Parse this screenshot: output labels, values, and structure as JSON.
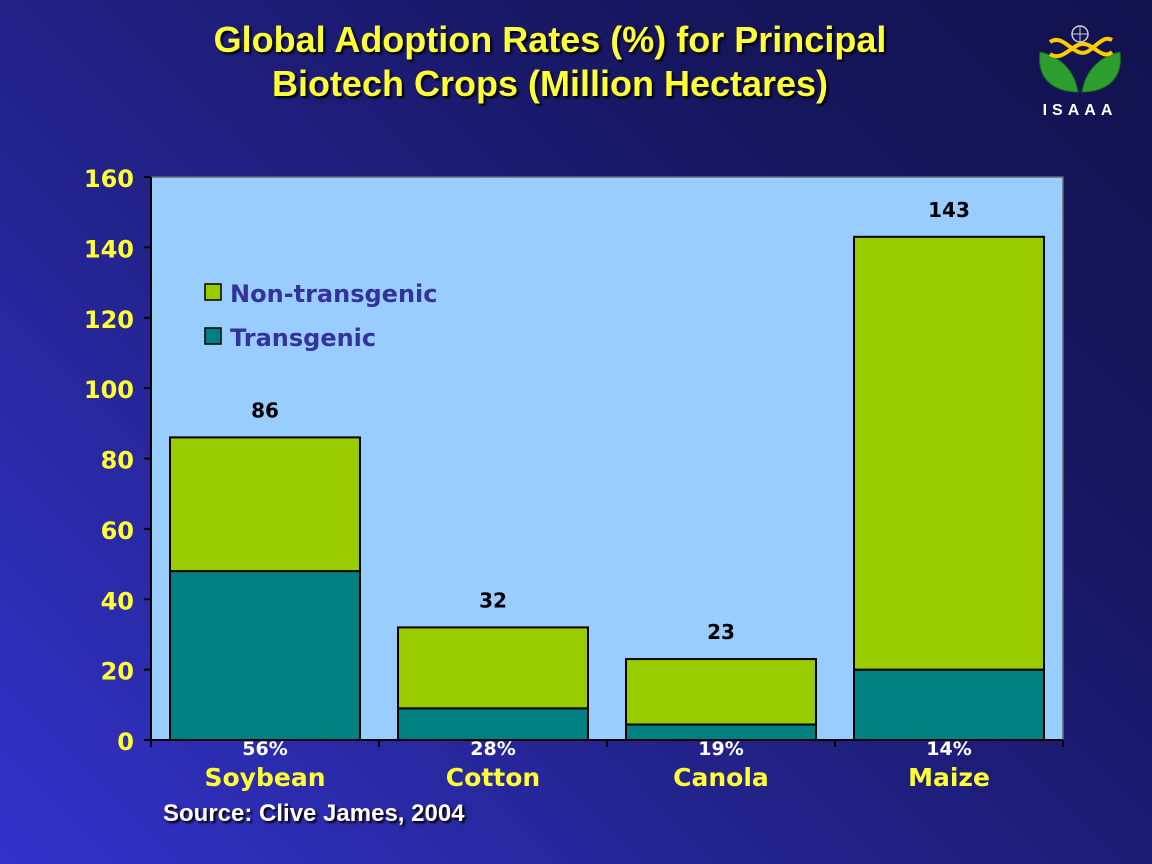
{
  "slide": {
    "title_line1": "Global Adoption Rates (%) for Principal",
    "title_line2": "Biotech Crops (Million Hectares)",
    "logo_text": "ISAAA",
    "source": "Source: Clive James, 2004"
  },
  "colors": {
    "non_transgenic": "#99cc00",
    "transgenic": "#008080",
    "plot_bg": "#99ccff",
    "axis_text": "#ffff33",
    "legend_text": "#333399"
  },
  "chart_data": {
    "type": "bar",
    "stacked": true,
    "categories": [
      "Soybean",
      "Cotton",
      "Canola",
      "Maize"
    ],
    "series": [
      {
        "name": "Transgenic",
        "values": [
          48,
          9,
          4.4,
          20
        ]
      },
      {
        "name": "Non-transgenic",
        "values": [
          38,
          23,
          18.6,
          123
        ]
      }
    ],
    "totals": [
      86,
      32,
      23,
      143
    ],
    "total_labels": [
      "86",
      "32",
      "23",
      "143"
    ],
    "adoption_labels": [
      "56%",
      "28%",
      "19%",
      "14%"
    ],
    "ylim": [
      0,
      160
    ],
    "yticks": [
      0,
      20,
      40,
      60,
      80,
      100,
      120,
      140,
      160
    ],
    "ytick_labels": [
      "0",
      "20",
      "40",
      "60",
      "80",
      "100",
      "120",
      "140",
      "160"
    ],
    "legend": [
      {
        "label": "Non-transgenic",
        "series": "Non-transgenic"
      },
      {
        "label": "Transgenic",
        "series": "Transgenic"
      }
    ],
    "legend_position": "top-left",
    "grid": false
  }
}
